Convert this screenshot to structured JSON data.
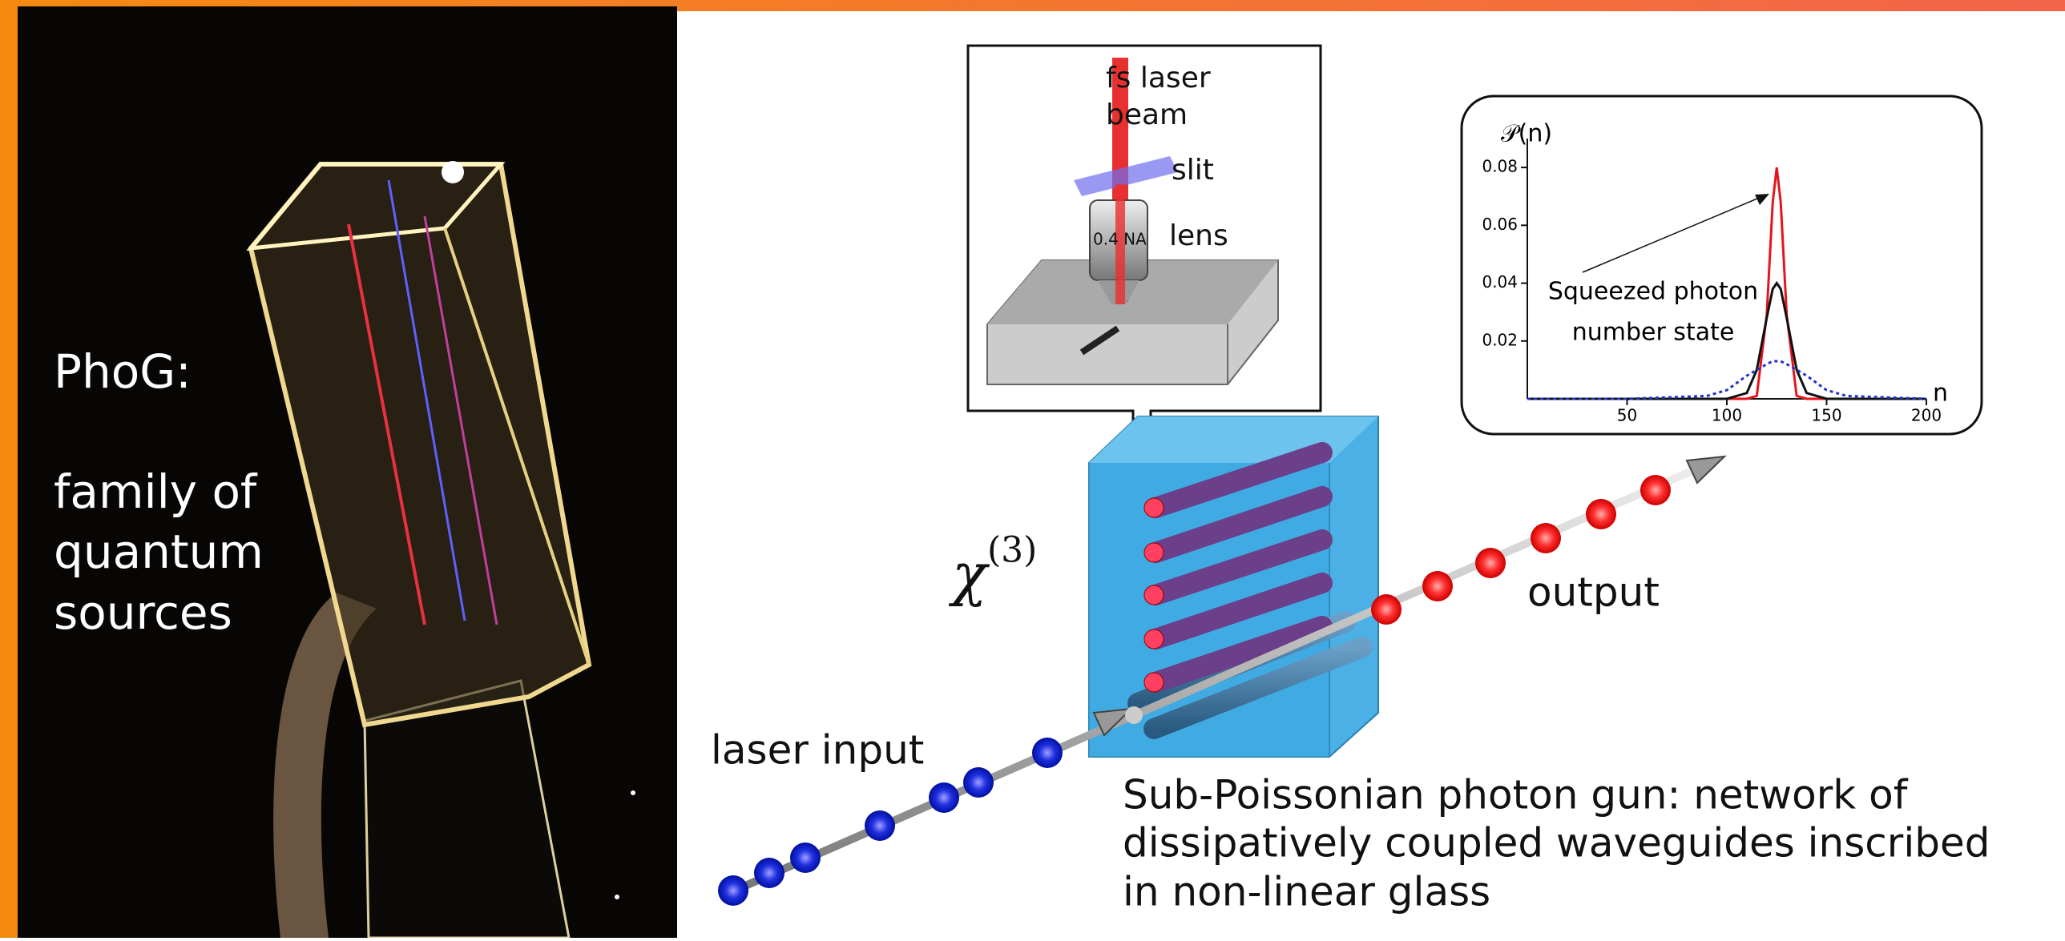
{
  "photo_panel": {
    "title": "PhoG:",
    "text_lines": [
      "family of",
      "quantum",
      "sources"
    ]
  },
  "diagram": {
    "laser_label_lines": [
      "fs laser",
      "beam"
    ],
    "slit_label": "slit",
    "lens_label": "lens",
    "lens_marking": "0.4 NA",
    "nonlinearity_symbol": "χ",
    "nonlinearity_order": "(3)",
    "output_label": "output",
    "input_label": "laser input",
    "caption_lines": [
      "Sub-Poissonian photon gun: network of",
      "dissipatively coupled waveguides inscribed",
      "in non-linear glass"
    ]
  },
  "chart_data": {
    "type": "line",
    "y_label": "𝒫(n)",
    "x_label": "n",
    "annotation_lines": [
      "Squeezed photon",
      "number state"
    ],
    "x": [
      0,
      50,
      90,
      100,
      110,
      115,
      120,
      123,
      125,
      127,
      130,
      135,
      140,
      150,
      160,
      200
    ],
    "xlim": [
      0,
      200
    ],
    "ylim": [
      0,
      0.09
    ],
    "xticks": [
      50,
      100,
      150,
      200
    ],
    "yticks": [
      0.02,
      0.04,
      0.06,
      0.08
    ],
    "series": [
      {
        "color": "#e8141c",
        "line_style": "solid",
        "values": [
          0,
          0,
          0,
          0,
          0,
          0.001,
          0.029,
          0.068,
          0.08,
          0.068,
          0.029,
          0.001,
          0,
          0,
          0,
          0
        ]
      },
      {
        "color": "#111111",
        "line_style": "solid",
        "values": [
          0,
          0,
          0,
          0,
          0.002,
          0.01,
          0.028,
          0.038,
          0.04,
          0.038,
          0.028,
          0.01,
          0.002,
          0,
          0,
          0
        ]
      },
      {
        "color": "#2233cc",
        "line_style": "dotted",
        "values": [
          0,
          0,
          0.001,
          0.003,
          0.008,
          0.01,
          0.012,
          0.013,
          0.013,
          0.013,
          0.012,
          0.01,
          0.008,
          0.003,
          0.001,
          0
        ]
      }
    ]
  }
}
